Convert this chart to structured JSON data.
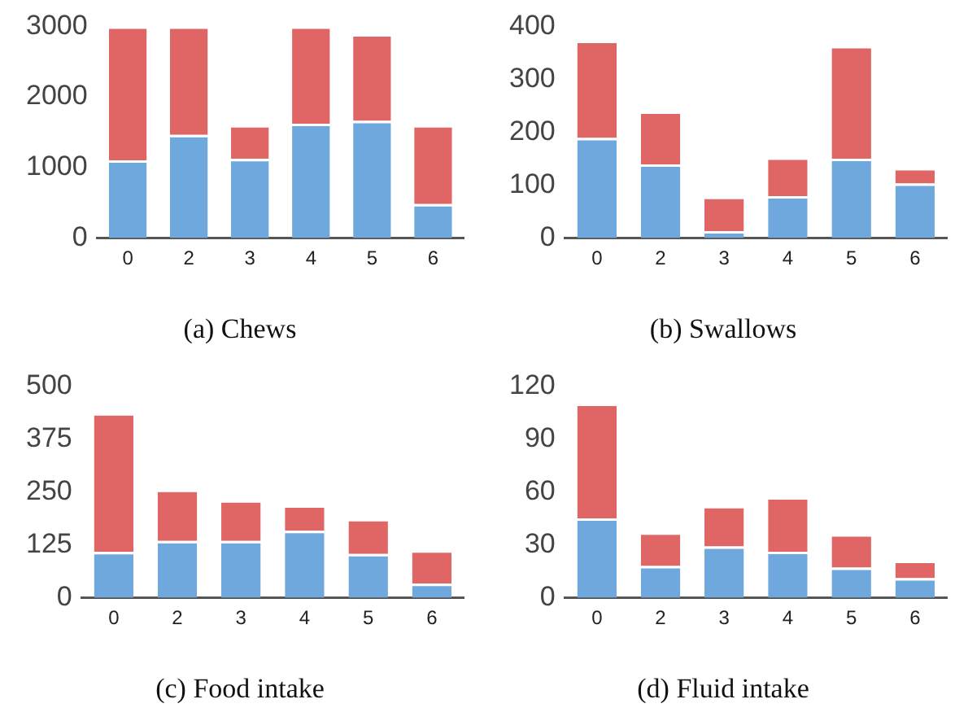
{
  "chart_data": [
    {
      "type": "bar",
      "title": "(a) Chews",
      "stacked": true,
      "categories": [
        "0",
        "2",
        "3",
        "4",
        "5",
        "6"
      ],
      "ylim": [
        0,
        3000
      ],
      "yticks": [
        0,
        1000,
        2000,
        3000
      ],
      "grid": false,
      "legend": false,
      "series": [
        {
          "color": "#6fa8dc",
          "values": [
            1100,
            1460,
            1120,
            1620,
            1660,
            480
          ]
        },
        {
          "color": "#e06666",
          "values": [
            1900,
            1540,
            480,
            1380,
            1230,
            1120
          ]
        }
      ]
    },
    {
      "type": "bar",
      "title": "(b) Swallows",
      "stacked": true,
      "categories": [
        "0",
        "2",
        "3",
        "4",
        "5",
        "6"
      ],
      "ylim": [
        0,
        400
      ],
      "yticks": [
        0,
        100,
        200,
        300,
        400
      ],
      "grid": false,
      "legend": false,
      "series": [
        {
          "color": "#6fa8dc",
          "values": [
            189,
            139,
            13,
            79,
            150,
            103
          ]
        },
        {
          "color": "#e06666",
          "values": [
            184,
            100,
            65,
            73,
            213,
            29
          ]
        }
      ]
    },
    {
      "type": "bar",
      "title": "(c) Food intake",
      "stacked": true,
      "categories": [
        "0",
        "2",
        "3",
        "4",
        "5",
        "6"
      ],
      "ylim": [
        0,
        500
      ],
      "yticks": [
        0,
        125,
        250,
        375,
        500
      ],
      "grid": false,
      "legend": false,
      "series": [
        {
          "color": "#6fa8dc",
          "values": [
            108,
            134,
            134,
            158,
            103,
            33
          ]
        },
        {
          "color": "#e06666",
          "values": [
            328,
            121,
            96,
            60,
            83,
            79
          ]
        }
      ]
    },
    {
      "type": "bar",
      "title": "(d) Fluid intake",
      "stacked": true,
      "categories": [
        "0",
        "2",
        "3",
        "4",
        "5",
        "6"
      ],
      "ylim": [
        0,
        120
      ],
      "yticks": [
        0,
        30,
        60,
        90,
        120
      ],
      "grid": false,
      "legend": false,
      "series": [
        {
          "color": "#6fa8dc",
          "values": [
            45,
            18,
            29,
            26,
            17,
            11
          ]
        },
        {
          "color": "#e06666",
          "values": [
            65,
            19,
            23,
            31,
            19,
            10
          ]
        }
      ]
    }
  ]
}
